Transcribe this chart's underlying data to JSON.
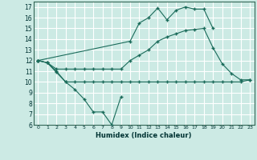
{
  "bg_color": "#cceae4",
  "grid_color": "#ffffff",
  "line_color": "#1a6b5a",
  "xlabel": "Humidex (Indice chaleur)",
  "xlim": [
    -0.5,
    23.5
  ],
  "ylim": [
    6,
    17.5
  ],
  "xticks": [
    0,
    1,
    2,
    3,
    4,
    5,
    6,
    7,
    8,
    9,
    10,
    11,
    12,
    13,
    14,
    15,
    16,
    17,
    18,
    19,
    20,
    21,
    22,
    23
  ],
  "yticks": [
    6,
    7,
    8,
    9,
    10,
    11,
    12,
    13,
    14,
    15,
    16,
    17
  ],
  "line1_x": [
    0,
    1,
    2,
    3,
    4,
    5,
    6,
    7,
    8,
    9
  ],
  "line1_y": [
    12.0,
    11.8,
    10.9,
    10.0,
    9.3,
    8.4,
    7.2,
    7.2,
    6.0,
    8.6
  ],
  "line2_x": [
    0,
    1,
    2,
    3,
    4,
    5,
    6,
    7,
    8,
    9,
    10,
    11,
    12,
    13,
    14,
    15,
    16,
    17,
    18,
    19,
    20,
    21,
    22,
    23
  ],
  "line2_y": [
    12.0,
    11.8,
    11.0,
    10.0,
    10.0,
    10.0,
    10.0,
    10.0,
    10.0,
    10.0,
    10.0,
    10.0,
    10.0,
    10.0,
    10.0,
    10.0,
    10.0,
    10.0,
    10.0,
    10.0,
    10.0,
    10.0,
    10.0,
    10.2
  ],
  "line3_x": [
    0,
    1,
    2,
    3,
    4,
    5,
    6,
    7,
    8,
    9,
    10,
    11,
    12,
    13,
    14,
    15,
    16,
    17,
    18,
    19,
    20,
    21,
    22,
    23
  ],
  "line3_y": [
    12.0,
    11.8,
    11.2,
    11.2,
    11.2,
    11.2,
    11.2,
    11.2,
    11.2,
    11.2,
    12.0,
    12.5,
    13.0,
    13.8,
    14.2,
    14.5,
    14.8,
    14.9,
    15.0,
    13.2,
    11.7,
    10.8,
    10.2,
    10.2
  ],
  "line4_x": [
    0,
    10,
    11,
    12,
    13,
    14,
    15,
    16,
    17,
    18,
    19
  ],
  "line4_y": [
    12.0,
    13.8,
    15.5,
    16.0,
    16.9,
    15.8,
    16.7,
    17.0,
    16.8,
    16.8,
    15.0
  ]
}
